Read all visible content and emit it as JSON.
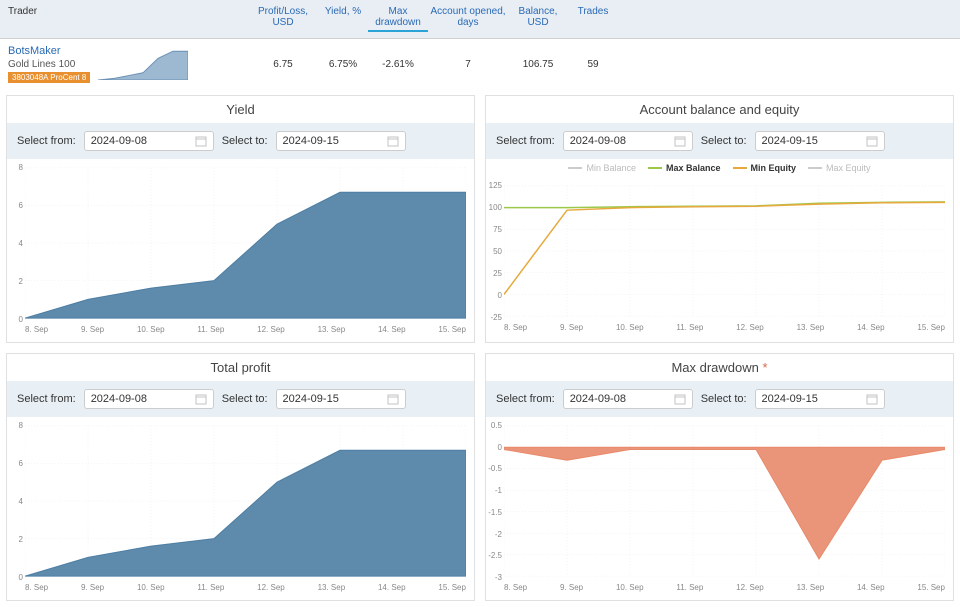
{
  "table": {
    "headers": {
      "trader": "Trader",
      "pl": "Profit/Loss, USD",
      "yield": "Yield, %",
      "drawdown": "Max drawdown",
      "days": "Account opened, days",
      "balance": "Balance, USD",
      "trades": "Trades"
    },
    "row": {
      "trader_name": "BotsMaker",
      "trader_sub": "Gold Lines 100",
      "trader_badge": "3803048A ProCent 8",
      "pl": "6.75",
      "yield": "6.75%",
      "drawdown": "-2.61%",
      "days": "7",
      "balance": "106.75",
      "trades": "59"
    },
    "sparkline": {
      "fill": "#9db9d1",
      "stroke": "#6a90b5",
      "points": [
        0,
        0.05,
        0.15,
        0.25,
        0.75,
        1.0,
        1.0
      ]
    }
  },
  "dates": {
    "from_label": "Select from:",
    "to_label": "Select to:",
    "from_value": "2024-09-08",
    "to_value": "2024-09-15"
  },
  "x_ticks": [
    "8. Sep",
    "9. Sep",
    "10. Sep",
    "11. Sep",
    "12. Sep",
    "13. Sep",
    "14. Sep",
    "15. Sep"
  ],
  "colors": {
    "grid": "#e9e9e9",
    "area_blue": "#4d7ea3",
    "area_orange": "#e88a6a",
    "line_green": "#9cc84a",
    "line_orange": "#e7a93d",
    "line_gray": "#cccccc",
    "bg": "#ffffff",
    "link": "#2a6ab5"
  },
  "charts": {
    "yield": {
      "title": "Yield",
      "ylim": [
        0,
        8
      ],
      "ytick_step": 2,
      "type": "area",
      "y_ticks": [
        "8",
        "6",
        "4",
        "2",
        "0"
      ],
      "values": [
        0,
        1.0,
        1.6,
        2.0,
        5.0,
        6.7,
        6.7,
        6.7
      ],
      "fill": "#4d7ea3"
    },
    "balance": {
      "title": "Account balance and equity",
      "ylim": [
        -25,
        125
      ],
      "ytick_step": 25,
      "type": "line",
      "y_ticks": [
        "125",
        "100",
        "75",
        "50",
        "25",
        "0",
        "-25"
      ],
      "legend": [
        {
          "label": "Min Balance",
          "color": "#cccccc",
          "inactive": true
        },
        {
          "label": "Max Balance",
          "color": "#9cc84a",
          "inactive": false
        },
        {
          "label": "Min Equity",
          "color": "#e7a93d",
          "inactive": false
        },
        {
          "label": "Max Equity",
          "color": "#cccccc",
          "inactive": true
        }
      ],
      "series": {
        "max_balance": {
          "color": "#9cc84a",
          "values": [
            100,
            100,
            101,
            101.5,
            102,
            105,
            106,
            106.5
          ]
        },
        "min_equity": {
          "color": "#e7a93d",
          "values": [
            0,
            97,
            100,
            101,
            101.5,
            104,
            105.5,
            106
          ]
        }
      }
    },
    "profit": {
      "title": "Total profit",
      "ylim": [
        0,
        8
      ],
      "ytick_step": 2,
      "type": "area",
      "y_ticks": [
        "8",
        "6",
        "4",
        "2",
        "0"
      ],
      "values": [
        0,
        1.0,
        1.6,
        2.0,
        5.0,
        6.7,
        6.7,
        6.7
      ],
      "fill": "#4d7ea3"
    },
    "drawdown": {
      "title": "Max drawdown",
      "title_suffix": "*",
      "ylim": [
        -3,
        0.5
      ],
      "ytick_step": 0.5,
      "type": "area",
      "y_ticks": [
        "0.5",
        "0",
        "-0.5",
        "-1",
        "-1.5",
        "-2",
        "-2.5",
        "-3"
      ],
      "values": [
        -0.05,
        -0.3,
        -0.05,
        -0.05,
        -0.05,
        -2.6,
        -0.3,
        -0.05
      ],
      "fill": "#e88a6a",
      "baseline": 0
    }
  }
}
